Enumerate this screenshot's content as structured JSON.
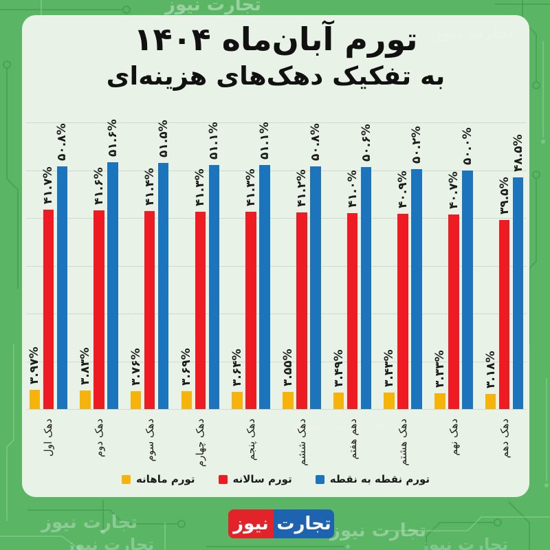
{
  "header": {
    "title": "تورم آبان‌ماه ۱۴۰۴",
    "subtitle": "به تفکیک دهک‌های هزینه‌ای"
  },
  "watermark": {
    "text": "تجارت نیوز"
  },
  "logo": {
    "first": "تجارت",
    "second": "نیوز"
  },
  "colors": {
    "frame_green": "#5ab565",
    "circuit_dark": "#3f9a4e",
    "circuit_light": "#8fd49a",
    "card_bg": "#e9f2e6",
    "gridline": "rgba(110,130,110,0.22)",
    "bar_yellow": "#f6b40a",
    "bar_red": "#ee1b22",
    "bar_blue": "#1c74bd",
    "logo_blue": "#1e63b0",
    "logo_red": "#e2232a",
    "text_dark": "#1b1b1b"
  },
  "chart_data": {
    "type": "bar",
    "title": "تورم آبان‌ماه ۱۴۰۴",
    "subtitle": "به تفکیک دهک‌های هزینه‌ای",
    "categories": [
      "دهک اول",
      "دهک دوم",
      "دهک سوم",
      "دهک چهارم",
      "دهک پنجم",
      "دهک ششم",
      "دهم هفتم",
      "دهک هشتم",
      "دهک نهم",
      "دهک دهم"
    ],
    "series": [
      {
        "name": "تورم ماهانه",
        "color": "#f6b40a",
        "values": [
          3.97,
          3.83,
          3.76,
          3.69,
          3.64,
          3.55,
          3.49,
          3.43,
          3.33,
          3.18
        ],
        "labels": [
          "۳.۹۷%",
          "۳.۸۳%",
          "۳.۷۶%",
          "۳.۶۹%",
          "۳.۶۴%",
          "۳.۵۵%",
          "۳.۴۹%",
          "۳.۴۳%",
          "۳.۳۳%",
          "۳.۱۸%"
        ]
      },
      {
        "name": "تورم سالانه",
        "color": "#ee1b22",
        "values": [
          41.7,
          41.6,
          41.4,
          41.3,
          41.3,
          41.2,
          41.0,
          40.9,
          40.7,
          39.5
        ],
        "labels": [
          "۴۱.۷%",
          "۴۱.۶%",
          "۴۱.۴%",
          "۴۱.۳%",
          "۴۱.۳%",
          "۴۱.۲%",
          "۴۱.۰%",
          "۴۰.۹%",
          "۴۰.۷%",
          "۳۹.۵%"
        ]
      },
      {
        "name": "تورم نقطه به نقطه",
        "color": "#1c74bd",
        "values": [
          50.8,
          51.6,
          51.5,
          51.1,
          51.1,
          50.8,
          50.6,
          50.2,
          50.0,
          48.5
        ],
        "labels": [
          "۵۰.۸%",
          "۵۱.۶%",
          "۵۱.۵%",
          "۵۱.۱%",
          "۵۱.۱%",
          "۵۰.۸%",
          "۵۰.۶%",
          "۵۰.۲%",
          "۵۰.۰%",
          "۴۸.۵%"
        ]
      }
    ],
    "ylim": [
      0,
      60
    ],
    "gridline_step": 10,
    "grid": true,
    "legend_position": "bottom",
    "bar_group_order_left_to_right": [
      "تورم ماهانه",
      "تورم سالانه",
      "تورم نقطه به نقطه"
    ]
  }
}
